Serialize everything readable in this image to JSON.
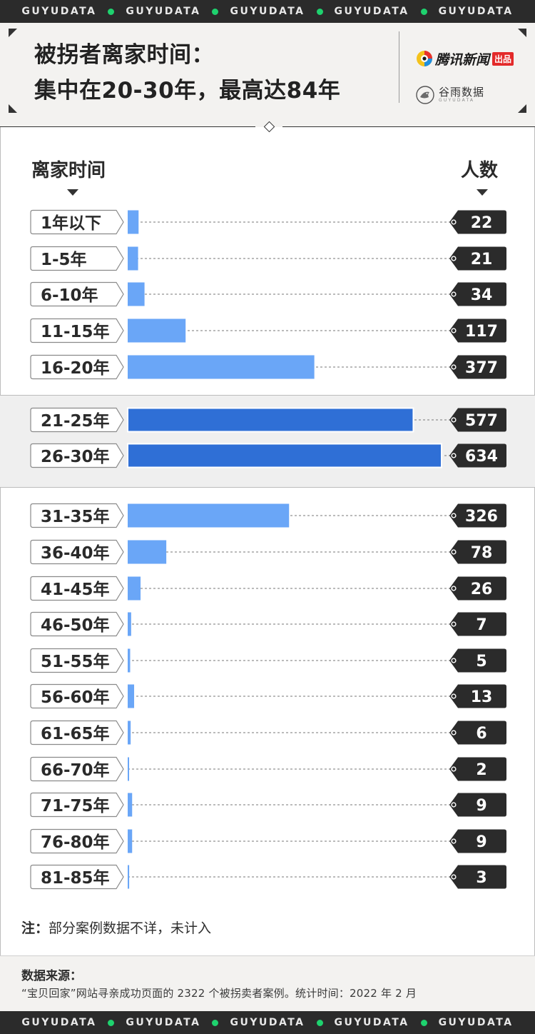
{
  "brand_strip": {
    "word": "GUYUDATA",
    "repeat": 5
  },
  "header": {
    "title_line1": "被拐者离家时间：",
    "title_line2": "集中在20-30年，最高达84年",
    "logo_qq_text": "腾讯新闻",
    "logo_qq_tag": "出品",
    "logo_gy_cn": "谷雨数据",
    "logo_gy_en": "GUYUDATA"
  },
  "columns": {
    "left": "离家时间",
    "right": "人数"
  },
  "colors": {
    "bar_normal": "#6aa6f7",
    "bar_highlight": "#2f6fd6",
    "tag": "#2b2b2b",
    "label_border": "#8a8a8a"
  },
  "chart_data": {
    "type": "bar",
    "orientation": "horizontal",
    "title": "被拐者离家时间：集中在20-30年，最高达84年",
    "xlabel": "离家时间",
    "ylabel": "人数",
    "categories": [
      "1年以下",
      "1-5年",
      "6-10年",
      "11-15年",
      "16-20年",
      "21-25年",
      "26-30年",
      "31-35年",
      "36-40年",
      "41-45年",
      "46-50年",
      "51-55年",
      "56-60年",
      "61-65年",
      "66-70年",
      "71-75年",
      "76-80年",
      "81-85年"
    ],
    "values": [
      22,
      21,
      34,
      117,
      377,
      577,
      634,
      326,
      78,
      26,
      7,
      5,
      13,
      6,
      2,
      9,
      9,
      3
    ],
    "highlighted": [
      "21-25年",
      "26-30年"
    ],
    "xlim": [
      0,
      634
    ]
  },
  "note": {
    "label": "注：",
    "text": "部分案例数据不详，未计入"
  },
  "source": {
    "title": "数据来源：",
    "text": "“宝贝回家”网站寻亲成功页面的 2322 个被拐卖者案例。统计时间：2022 年 2 月"
  }
}
